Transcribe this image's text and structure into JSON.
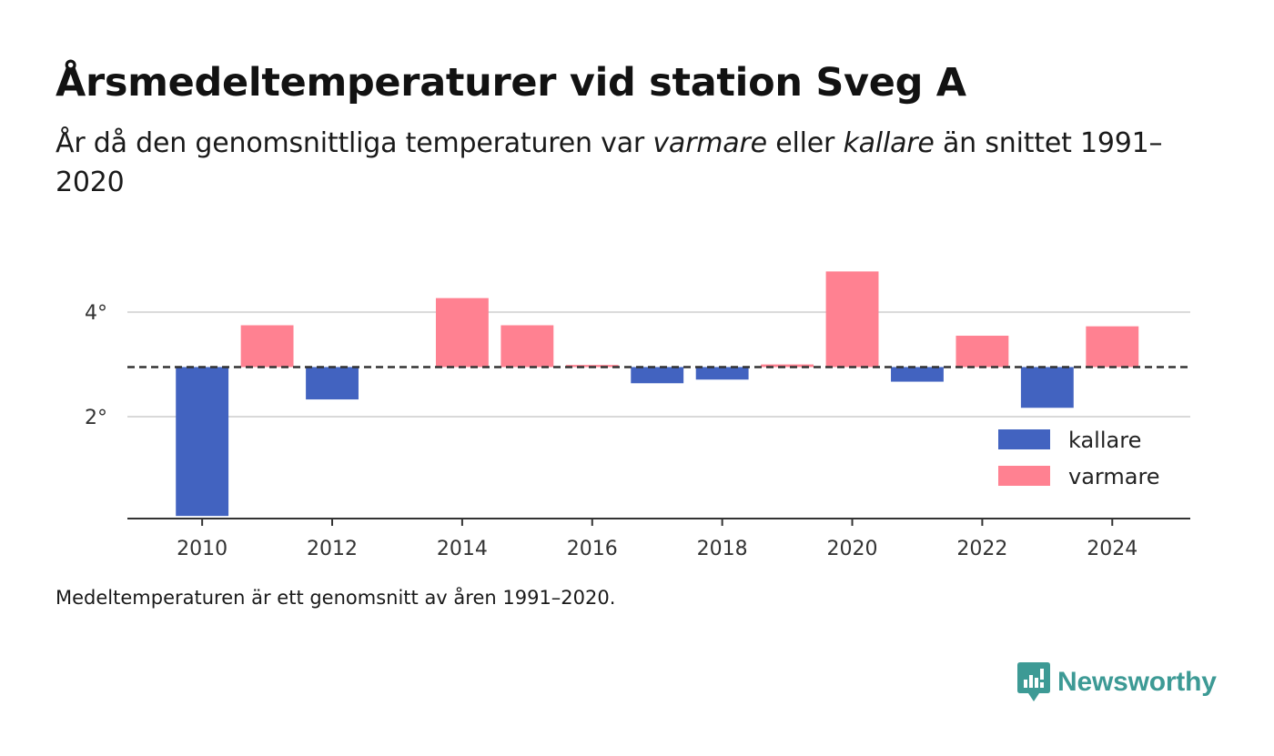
{
  "title": "Årsmedeltemperaturer vid station Sveg A",
  "subtitle": {
    "part1": "År då den genomsnittliga temperaturen var ",
    "warmer_word": "varmare",
    "part2": " eller ",
    "colder_word": "kallare",
    "part3": " än snittet 1991–2020"
  },
  "footnote": "Medeltemperaturen är ett genomsnitt av åren 1991–2020.",
  "brand": {
    "name": "Newsworthy",
    "icon": "newsworthy-logo-icon",
    "color": "#3d9a95"
  },
  "chart_data": {
    "type": "bar",
    "baseline": 2.95,
    "x": [
      2010,
      2011,
      2012,
      2014,
      2015,
      2016,
      2017,
      2018,
      2019,
      2020,
      2021,
      2022,
      2023,
      2024
    ],
    "values": [
      0.1,
      3.75,
      2.33,
      4.27,
      3.75,
      2.99,
      2.64,
      2.71,
      3.0,
      4.78,
      2.67,
      3.55,
      2.17,
      3.73
    ],
    "xlim": [
      2008.85,
      2025.2
    ],
    "ylim": [
      0.05,
      5.1
    ],
    "x_ticks": [
      {
        "value": 2010,
        "label": "2010"
      },
      {
        "value": 2012,
        "label": "2012"
      },
      {
        "value": 2014,
        "label": "2014"
      },
      {
        "value": 2016,
        "label": "2016"
      },
      {
        "value": 2018,
        "label": "2018"
      },
      {
        "value": 2020,
        "label": "2020"
      },
      {
        "value": 2022,
        "label": "2022"
      },
      {
        "value": 2024,
        "label": "2024"
      }
    ],
    "y_ticks": [
      {
        "value": 2,
        "label": "2°"
      },
      {
        "value": 4,
        "label": "4°"
      }
    ],
    "grid": true,
    "legend": {
      "position": "bottom-right",
      "items": [
        {
          "label": "kallare",
          "color": "#4263c0"
        },
        {
          "label": "varmare",
          "color": "#ff8191"
        }
      ]
    },
    "colors": {
      "colder": "#4263c0",
      "warmer": "#ff8191",
      "grid": "#d9d9d9",
      "axis": "#333333",
      "baseline": "#333333"
    }
  }
}
